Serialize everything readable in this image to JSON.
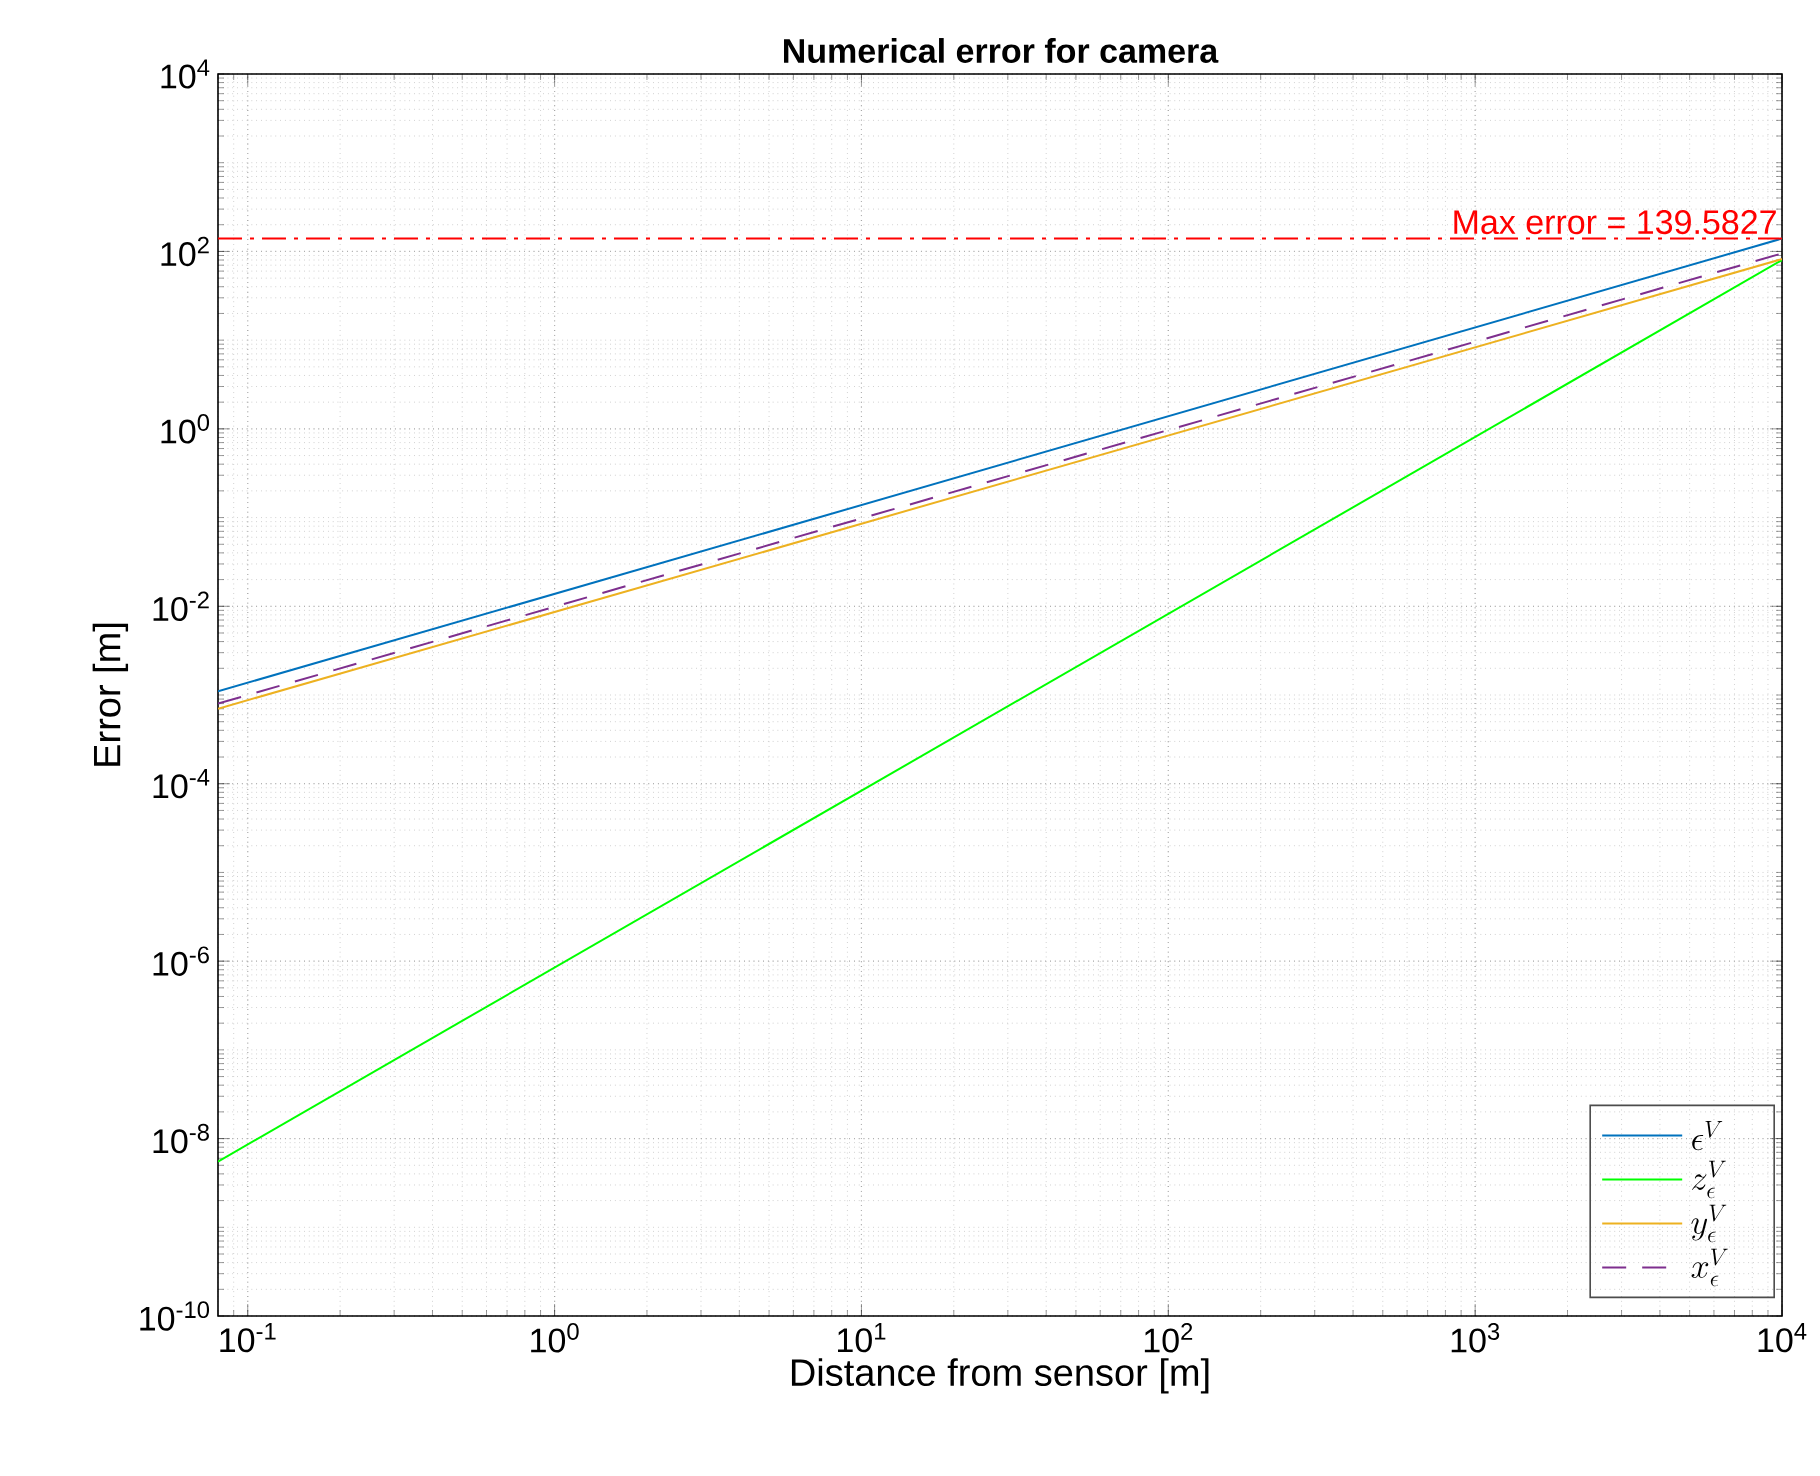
{
  "chart_data": {
    "type": "line",
    "title": "Numerical error for camera",
    "xlabel": "Distance from sensor [m]",
    "ylabel": "Error [m]",
    "x": [
      0.08,
      10000
    ],
    "series": [
      {
        "name": "\\epsilon^V",
        "color": "#0072bd",
        "values": [
          0.0011,
          139.58
        ]
      },
      {
        "name": "z_\\epsilon^V",
        "color": "#00ff00",
        "values": [
          5.5e-09,
          80
        ]
      },
      {
        "name": "y_\\epsilon^V",
        "color": "#edb120",
        "values": [
          0.0007,
          82
        ]
      },
      {
        "name": "x_\\epsilon^V",
        "color": "#7e2f8e",
        "line_style": "dashed",
        "values": [
          0.0008,
          95
        ]
      }
    ],
    "log": "xy",
    "xlim": [
      0.08,
      10000
    ],
    "ylim": [
      1e-10,
      10000
    ],
    "xticks": [
      {
        "value": 0.1,
        "label": "10$^{-1}$"
      },
      {
        "value": 1,
        "label": "10$^{0}$"
      },
      {
        "value": 10,
        "label": "10$^{1}$"
      },
      {
        "value": 100,
        "label": "10$^{2}$"
      },
      {
        "value": 1000,
        "label": "10$^{3}$"
      },
      {
        "value": 10000,
        "label": "10$^{4}$"
      }
    ],
    "yticks": [
      {
        "value": 1e-10,
        "label": "10$^{-10}$"
      },
      {
        "value": 1e-08,
        "label": "10$^{-8}$"
      },
      {
        "value": 1e-06,
        "label": "10$^{-6}$"
      },
      {
        "value": 0.0001,
        "label": "10$^{-4}$"
      },
      {
        "value": 0.01,
        "label": "10$^{-2}$"
      },
      {
        "value": 1,
        "label": "10$^{0}$"
      },
      {
        "value": 100,
        "label": "10$^{2}$"
      },
      {
        "value": 10000,
        "label": "10$^{4}$"
      }
    ],
    "ref_lines": [
      {
        "axis": "y",
        "value": 139.5827,
        "label": "Max error = 139.5827",
        "color": "#ff0000",
        "line_style": "dashdot"
      }
    ],
    "grid": true,
    "legend": "bottom right",
    "line_style": "solid"
  }
}
